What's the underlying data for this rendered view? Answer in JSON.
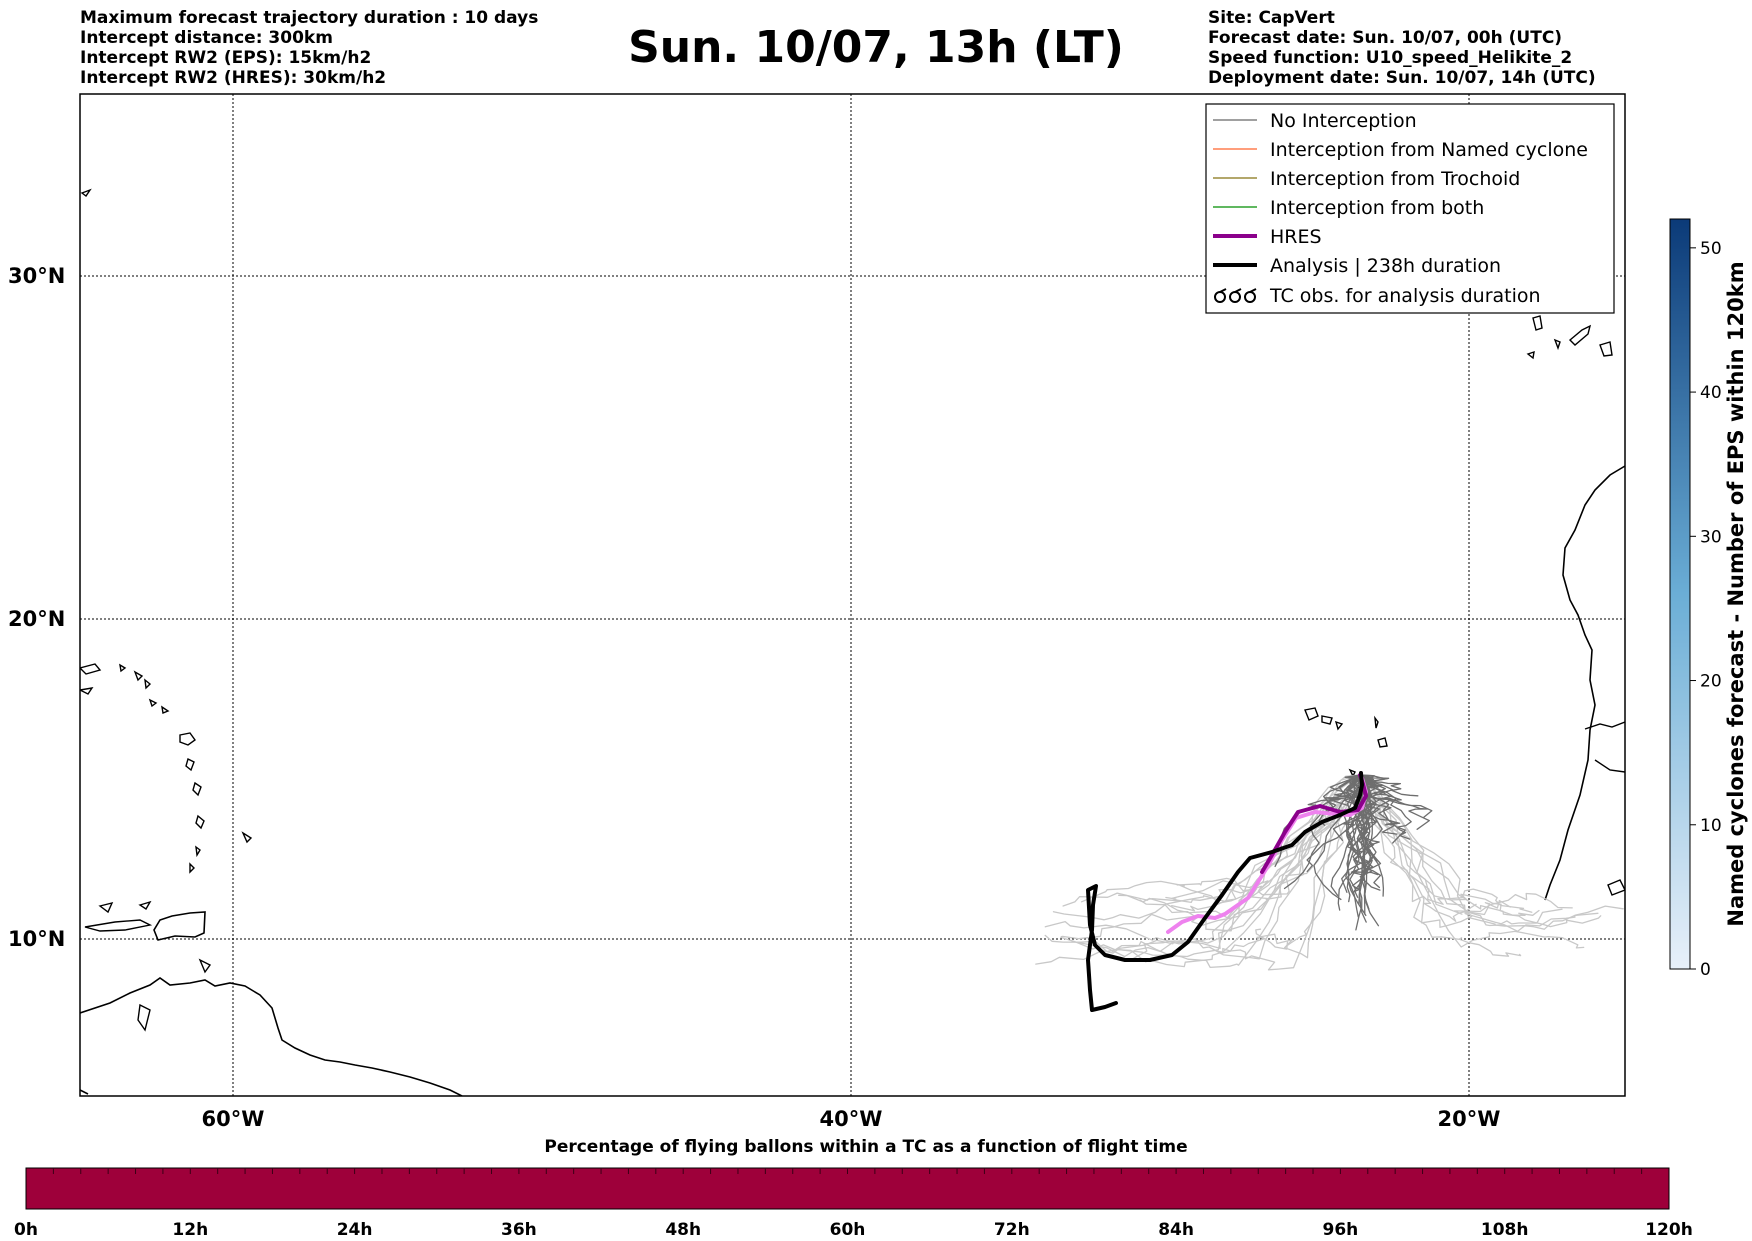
{
  "header": {
    "left_lines": [
      "Maximum forecast trajectory duration : 10 days",
      "Intercept distance: 300km",
      "Intercept RW2 (EPS):  15km/h2",
      "Intercept RW2 (HRES): 30km/h2"
    ],
    "title": "Sun. 10/07, 13h (LT)",
    "right_lines": [
      "Site: CapVert",
      "Forecast date: Sun. 10/07, 00h (UTC)",
      "Speed function: U10_speed_Helikite_2",
      "Deployment date: Sun. 10/07, 14h (UTC)"
    ]
  },
  "map": {
    "lat_labels": [
      "30°N",
      "20°N",
      "10°N"
    ],
    "lon_labels": [
      "60°W",
      "40°W",
      "20°W"
    ]
  },
  "legend": {
    "items": [
      {
        "label": "No Interception",
        "color": "#808080"
      },
      {
        "label": "Interception from Named cyclone",
        "color": "#ff7f50"
      },
      {
        "label": "Interception from Trochoid",
        "color": "#9a8a3a"
      },
      {
        "label": "Interception from both",
        "color": "#2ca02c"
      },
      {
        "label": "HRES",
        "color": "#8b008b"
      },
      {
        "label": "Analysis | 238h duration",
        "color": "#000000"
      },
      {
        "label": "TC obs. for analysis duration",
        "color": "#000000"
      }
    ]
  },
  "right_colorbar": {
    "label": "Named cyclones forecast - Number of EPS within 120km",
    "ticks": [
      "0",
      "10",
      "20",
      "30",
      "40",
      "50"
    ],
    "color_low": "#e8f0f9",
    "color_high": "#0b3a78"
  },
  "bottom_colorbar": {
    "title": "Percentage of flying ballons within a TC as a function of flight time",
    "ticks": [
      "0h",
      "12h",
      "24h",
      "36h",
      "48h",
      "60h",
      "72h",
      "84h",
      "96h",
      "108h",
      "120h"
    ],
    "color": "#9e003a"
  }
}
